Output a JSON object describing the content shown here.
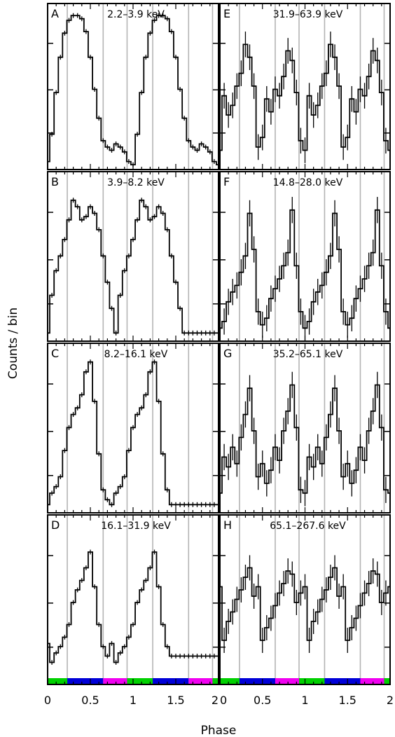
{
  "figure": {
    "ylabel": "Counts / bin",
    "xlabel": "Phase"
  },
  "colors": {
    "frame": "#000000",
    "grid": "#b4b4b4",
    "band_green": "#00d000",
    "band_blue": "#0000d8",
    "band_magenta": "#f000f0"
  },
  "chart_data": [
    {
      "id": "A",
      "type": "line",
      "label": "A",
      "energy": "2.2–3.9 keV",
      "xlim": [
        0,
        2
      ],
      "ylim": [
        0,
        1
      ],
      "tick_style": "log",
      "x": [
        0.0,
        0.05,
        0.1,
        0.15,
        0.2,
        0.25,
        0.3,
        0.35,
        0.4,
        0.45,
        0.5,
        0.55,
        0.6,
        0.65,
        0.7,
        0.75,
        0.8,
        0.85,
        0.9,
        0.95,
        1.0,
        1.05,
        1.1,
        1.15,
        1.2,
        1.25,
        1.3,
        1.35,
        1.4,
        1.45,
        1.5,
        1.55,
        1.6,
        1.65,
        1.7,
        1.75,
        1.8,
        1.85,
        1.9,
        1.95,
        2.0
      ],
      "y": [
        0.05,
        0.22,
        0.48,
        0.7,
        0.85,
        0.93,
        0.96,
        0.96,
        0.94,
        0.86,
        0.7,
        0.5,
        0.32,
        0.18,
        0.14,
        0.12,
        0.16,
        0.14,
        0.11,
        0.05,
        0.03,
        0.22,
        0.48,
        0.7,
        0.85,
        0.93,
        0.96,
        0.96,
        0.94,
        0.86,
        0.7,
        0.5,
        0.32,
        0.18,
        0.14,
        0.12,
        0.16,
        0.14,
        0.11,
        0.05,
        0.03
      ]
    },
    {
      "id": "B",
      "type": "line",
      "label": "B",
      "energy": "3.9–8.2 keV",
      "xlim": [
        0,
        2
      ],
      "ylim": [
        0,
        1
      ],
      "tick_style": "log",
      "x": [
        0.0,
        0.05,
        0.1,
        0.15,
        0.2,
        0.25,
        0.3,
        0.35,
        0.4,
        0.45,
        0.5,
        0.55,
        0.6,
        0.65,
        0.7,
        0.75,
        0.8,
        0.85,
        0.9,
        0.95,
        1.0,
        1.05,
        1.1,
        1.15,
        1.2,
        1.25,
        1.3,
        1.35,
        1.4,
        1.45,
        1.5,
        1.55,
        1.6,
        1.65,
        1.7,
        1.75,
        1.8,
        1.85,
        1.9,
        1.95,
        2.0
      ],
      "y": [
        0.05,
        0.28,
        0.43,
        0.52,
        0.62,
        0.74,
        0.86,
        0.82,
        0.74,
        0.76,
        0.82,
        0.78,
        0.68,
        0.52,
        0.36,
        0.2,
        0.05,
        0.28,
        0.43,
        0.52,
        0.62,
        0.74,
        0.86,
        0.82,
        0.74,
        0.76,
        0.82,
        0.78,
        0.68,
        0.52,
        0.36,
        0.2,
        0.05,
        0.05,
        0.05,
        0.05,
        0.05,
        0.05,
        0.05,
        0.05,
        0.05
      ]
    },
    {
      "id": "C",
      "type": "line",
      "label": "C",
      "energy": "8.2–16.1 keV",
      "xlim": [
        0,
        2
      ],
      "ylim": [
        0,
        1
      ],
      "tick_style": "log",
      "x": [
        0.0,
        0.05,
        0.1,
        0.15,
        0.2,
        0.25,
        0.3,
        0.35,
        0.4,
        0.45,
        0.5,
        0.55,
        0.6,
        0.65,
        0.7,
        0.75,
        0.8,
        0.85,
        0.9,
        0.95,
        1.0,
        1.05,
        1.1,
        1.15,
        1.2,
        1.25,
        1.3,
        1.35,
        1.4,
        1.45,
        1.5,
        1.55,
        1.6,
        1.65,
        1.7,
        1.75,
        1.8,
        1.85,
        1.9,
        1.95,
        2.0
      ],
      "y": [
        0.05,
        0.12,
        0.16,
        0.22,
        0.38,
        0.52,
        0.6,
        0.64,
        0.72,
        0.86,
        0.92,
        0.68,
        0.36,
        0.14,
        0.08,
        0.05,
        0.12,
        0.16,
        0.22,
        0.38,
        0.52,
        0.6,
        0.64,
        0.72,
        0.86,
        0.92,
        0.68,
        0.36,
        0.14,
        0.05,
        0.05,
        0.05,
        0.05,
        0.05,
        0.05,
        0.05,
        0.05,
        0.05,
        0.05,
        0.05,
        0.05
      ]
    },
    {
      "id": "D",
      "type": "line",
      "label": "D",
      "energy": "16.1–31.9 keV",
      "xlim": [
        0,
        2
      ],
      "ylim": [
        0,
        1
      ],
      "tick_style": "log",
      "x": [
        0.0,
        0.05,
        0.1,
        0.15,
        0.2,
        0.25,
        0.3,
        0.35,
        0.4,
        0.45,
        0.5,
        0.55,
        0.6,
        0.65,
        0.7,
        0.75,
        0.8,
        0.85,
        0.9,
        0.95,
        1.0,
        1.05,
        1.1,
        1.15,
        1.2,
        1.25,
        1.3,
        1.35,
        1.4,
        1.45,
        1.5,
        1.55,
        1.6,
        1.65,
        1.7,
        1.75,
        1.8,
        1.85,
        1.9,
        1.95,
        2.0
      ],
      "y": [
        0.22,
        0.1,
        0.16,
        0.2,
        0.26,
        0.34,
        0.48,
        0.56,
        0.62,
        0.7,
        0.8,
        0.58,
        0.34,
        0.2,
        0.14,
        0.22,
        0.1,
        0.16,
        0.2,
        0.26,
        0.34,
        0.48,
        0.56,
        0.62,
        0.7,
        0.8,
        0.58,
        0.34,
        0.2,
        0.14,
        0.14,
        0.14,
        0.14,
        0.14,
        0.14,
        0.14,
        0.14,
        0.14,
        0.14,
        0.14,
        0.14
      ]
    },
    {
      "id": "E",
      "type": "line",
      "label": "E",
      "energy": "31.9–63.9 keV",
      "xlim": [
        0,
        2
      ],
      "ylim": [
        0,
        1
      ],
      "tick_style": "log",
      "x": [
        0.0,
        0.05,
        0.1,
        0.15,
        0.2,
        0.25,
        0.3,
        0.35,
        0.4,
        0.45,
        0.5,
        0.55,
        0.6,
        0.65,
        0.7,
        0.75,
        0.8,
        0.85,
        0.9,
        0.95,
        1.0,
        1.05,
        1.1,
        1.15,
        1.2,
        1.25,
        1.3,
        1.35,
        1.4,
        1.45,
        1.5,
        1.55,
        1.6,
        1.65,
        1.7,
        1.75,
        1.8,
        1.85,
        1.9,
        1.95,
        2.0
      ],
      "y": [
        0.12,
        0.46,
        0.34,
        0.4,
        0.52,
        0.6,
        0.78,
        0.7,
        0.52,
        0.14,
        0.2,
        0.44,
        0.36,
        0.5,
        0.46,
        0.58,
        0.74,
        0.68,
        0.48,
        0.18,
        0.12,
        0.46,
        0.34,
        0.4,
        0.52,
        0.6,
        0.78,
        0.7,
        0.52,
        0.14,
        0.2,
        0.44,
        0.36,
        0.5,
        0.46,
        0.58,
        0.74,
        0.68,
        0.48,
        0.18,
        0.12
      ]
    },
    {
      "id": "F",
      "type": "line",
      "label": "F",
      "energy": "14.8–28.0 keV",
      "xlim": [
        0,
        2
      ],
      "ylim": [
        0,
        1
      ],
      "tick_style": "log",
      "x": [
        0.0,
        0.05,
        0.1,
        0.15,
        0.2,
        0.25,
        0.3,
        0.35,
        0.4,
        0.45,
        0.5,
        0.55,
        0.6,
        0.65,
        0.7,
        0.75,
        0.8,
        0.85,
        0.9,
        0.95,
        1.0,
        1.05,
        1.1,
        1.15,
        1.2,
        1.25,
        1.3,
        1.35,
        1.4,
        1.45,
        1.5,
        1.55,
        1.6,
        1.65,
        1.7,
        1.75,
        1.8,
        1.85,
        1.9,
        1.95,
        2.0
      ],
      "y": [
        0.08,
        0.12,
        0.24,
        0.3,
        0.34,
        0.42,
        0.52,
        0.78,
        0.56,
        0.18,
        0.1,
        0.14,
        0.26,
        0.32,
        0.38,
        0.46,
        0.54,
        0.8,
        0.46,
        0.18,
        0.08,
        0.12,
        0.24,
        0.3,
        0.34,
        0.42,
        0.52,
        0.78,
        0.56,
        0.18,
        0.1,
        0.14,
        0.26,
        0.32,
        0.38,
        0.46,
        0.54,
        0.8,
        0.46,
        0.18,
        0.08
      ]
    },
    {
      "id": "G",
      "type": "line",
      "label": "G",
      "energy": "35.2–65.1 keV",
      "xlim": [
        0,
        2
      ],
      "ylim": [
        0,
        1
      ],
      "tick_style": "log",
      "x": [
        0.0,
        0.05,
        0.1,
        0.15,
        0.2,
        0.25,
        0.3,
        0.35,
        0.4,
        0.45,
        0.5,
        0.55,
        0.6,
        0.65,
        0.7,
        0.75,
        0.8,
        0.85,
        0.9,
        0.95,
        1.0,
        1.05,
        1.1,
        1.15,
        1.2,
        1.25,
        1.3,
        1.35,
        1.4,
        1.45,
        1.5,
        1.55,
        1.6,
        1.65,
        1.7,
        1.75,
        1.8,
        1.85,
        1.9,
        1.95,
        2.0
      ],
      "y": [
        0.12,
        0.34,
        0.28,
        0.4,
        0.3,
        0.46,
        0.6,
        0.76,
        0.5,
        0.22,
        0.3,
        0.18,
        0.26,
        0.4,
        0.32,
        0.5,
        0.62,
        0.78,
        0.52,
        0.14,
        0.12,
        0.34,
        0.28,
        0.4,
        0.3,
        0.46,
        0.6,
        0.76,
        0.5,
        0.22,
        0.3,
        0.18,
        0.26,
        0.4,
        0.32,
        0.5,
        0.62,
        0.78,
        0.52,
        0.14,
        0.12
      ]
    },
    {
      "id": "H",
      "type": "line",
      "label": "H",
      "energy": "65.1–267.6 keV",
      "xlim": [
        0,
        2
      ],
      "ylim": [
        0,
        1
      ],
      "tick_style": "log",
      "x": [
        0.0,
        0.05,
        0.1,
        0.15,
        0.2,
        0.25,
        0.3,
        0.35,
        0.4,
        0.45,
        0.5,
        0.55,
        0.6,
        0.65,
        0.7,
        0.75,
        0.8,
        0.85,
        0.9,
        0.95,
        1.0,
        1.05,
        1.1,
        1.15,
        1.2,
        1.25,
        1.3,
        1.35,
        1.4,
        1.45,
        1.5,
        1.55,
        1.6,
        1.65,
        1.7,
        1.75,
        1.8,
        1.85,
        1.9,
        1.95,
        2.0
      ],
      "y": [
        0.58,
        0.24,
        0.36,
        0.42,
        0.5,
        0.56,
        0.64,
        0.7,
        0.52,
        0.58,
        0.24,
        0.32,
        0.38,
        0.46,
        0.54,
        0.6,
        0.68,
        0.66,
        0.48,
        0.54,
        0.58,
        0.24,
        0.36,
        0.42,
        0.5,
        0.56,
        0.64,
        0.7,
        0.52,
        0.58,
        0.24,
        0.32,
        0.38,
        0.46,
        0.54,
        0.6,
        0.68,
        0.66,
        0.48,
        0.54,
        0.58
      ]
    }
  ],
  "phase_bands": [
    {
      "start": 0.0,
      "end": 0.23,
      "color": "band_green"
    },
    {
      "start": 0.23,
      "end": 0.65,
      "color": "band_blue"
    },
    {
      "start": 0.65,
      "end": 0.93,
      "color": "band_magenta"
    },
    {
      "start": 0.93,
      "end": 1.0,
      "color": "band_green"
    }
  ],
  "grid_phases": [
    0.23,
    0.65,
    0.93
  ],
  "x_ticks_left": [
    "0",
    "0.5",
    "1",
    "1.5",
    "2"
  ],
  "x_ticks_right": [
    "0",
    "0.5",
    "1",
    "1.5",
    "2"
  ]
}
